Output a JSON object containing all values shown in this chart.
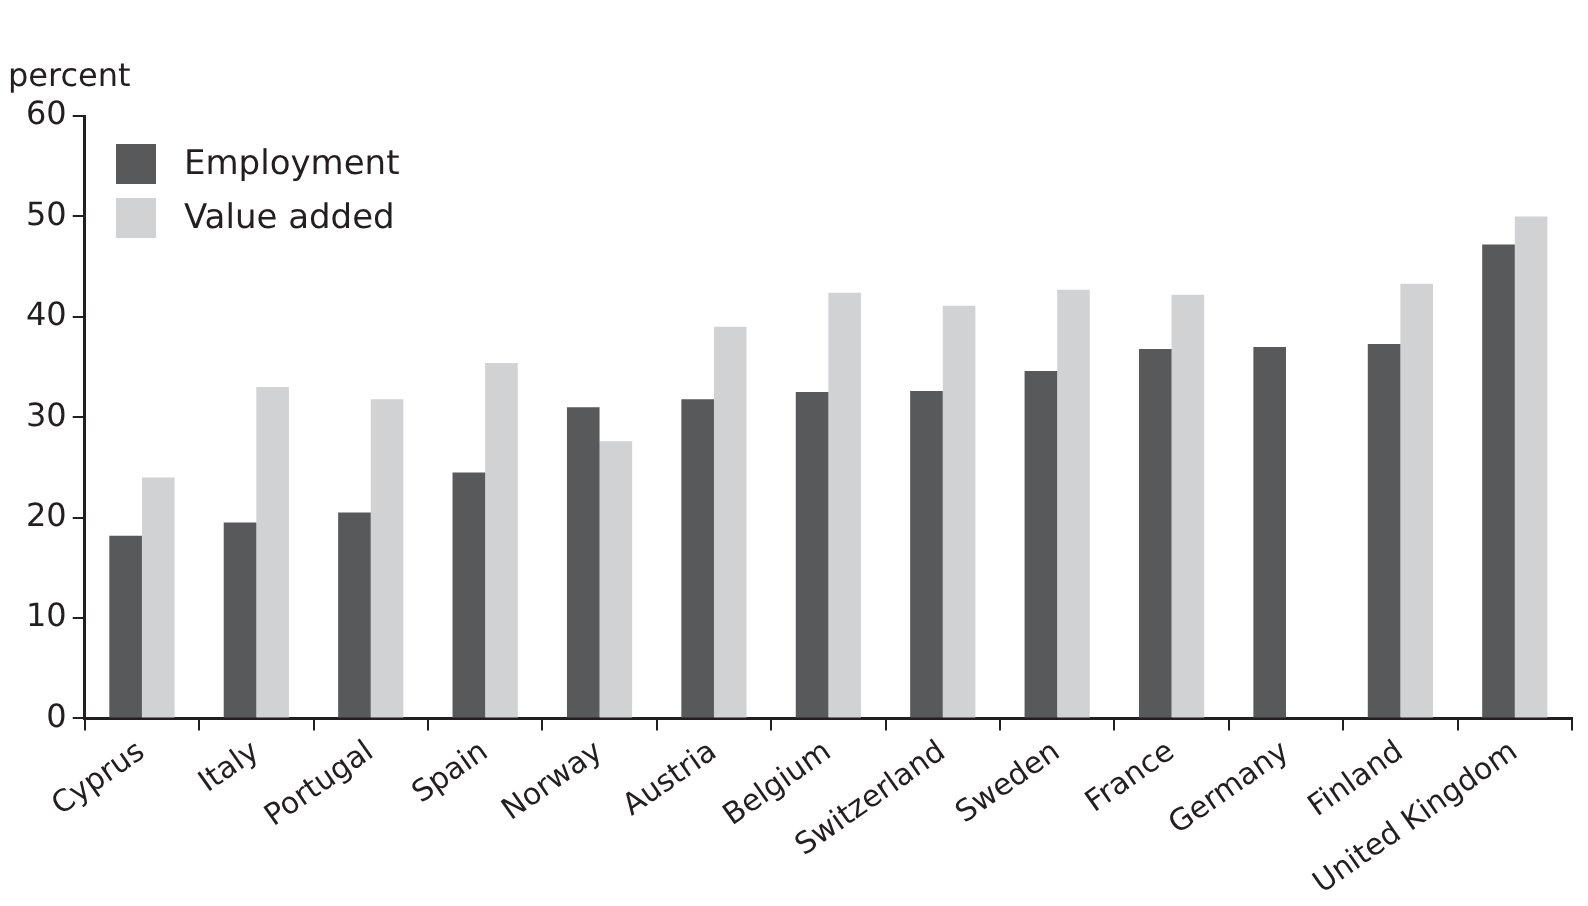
{
  "chart_data": {
    "type": "bar",
    "ylabel": "percent",
    "categories": [
      "Cyprus",
      "Italy",
      "Portugal",
      "Spain",
      "Norway",
      "Austria",
      "Belgium",
      "Switzerland",
      "Sweden",
      "France",
      "Germany",
      "Finland",
      "United Kingdom"
    ],
    "series": [
      {
        "name": "Employment",
        "color": "#58595b",
        "values": [
          18.2,
          19.5,
          20.5,
          24.5,
          31,
          31.8,
          32.5,
          32.6,
          34.6,
          36.8,
          37,
          37.3,
          47.2
        ]
      },
      {
        "name": "Value added",
        "color": "#d1d2d4",
        "values": [
          24,
          33,
          31.8,
          35.4,
          27.6,
          39,
          42.4,
          41.1,
          42.7,
          42.2,
          null,
          43.3,
          50
        ]
      }
    ],
    "ylim": [
      0,
      60
    ],
    "yticks": [
      0,
      10,
      20,
      30,
      40,
      50,
      60
    ],
    "grid": false,
    "legend": "top left"
  }
}
